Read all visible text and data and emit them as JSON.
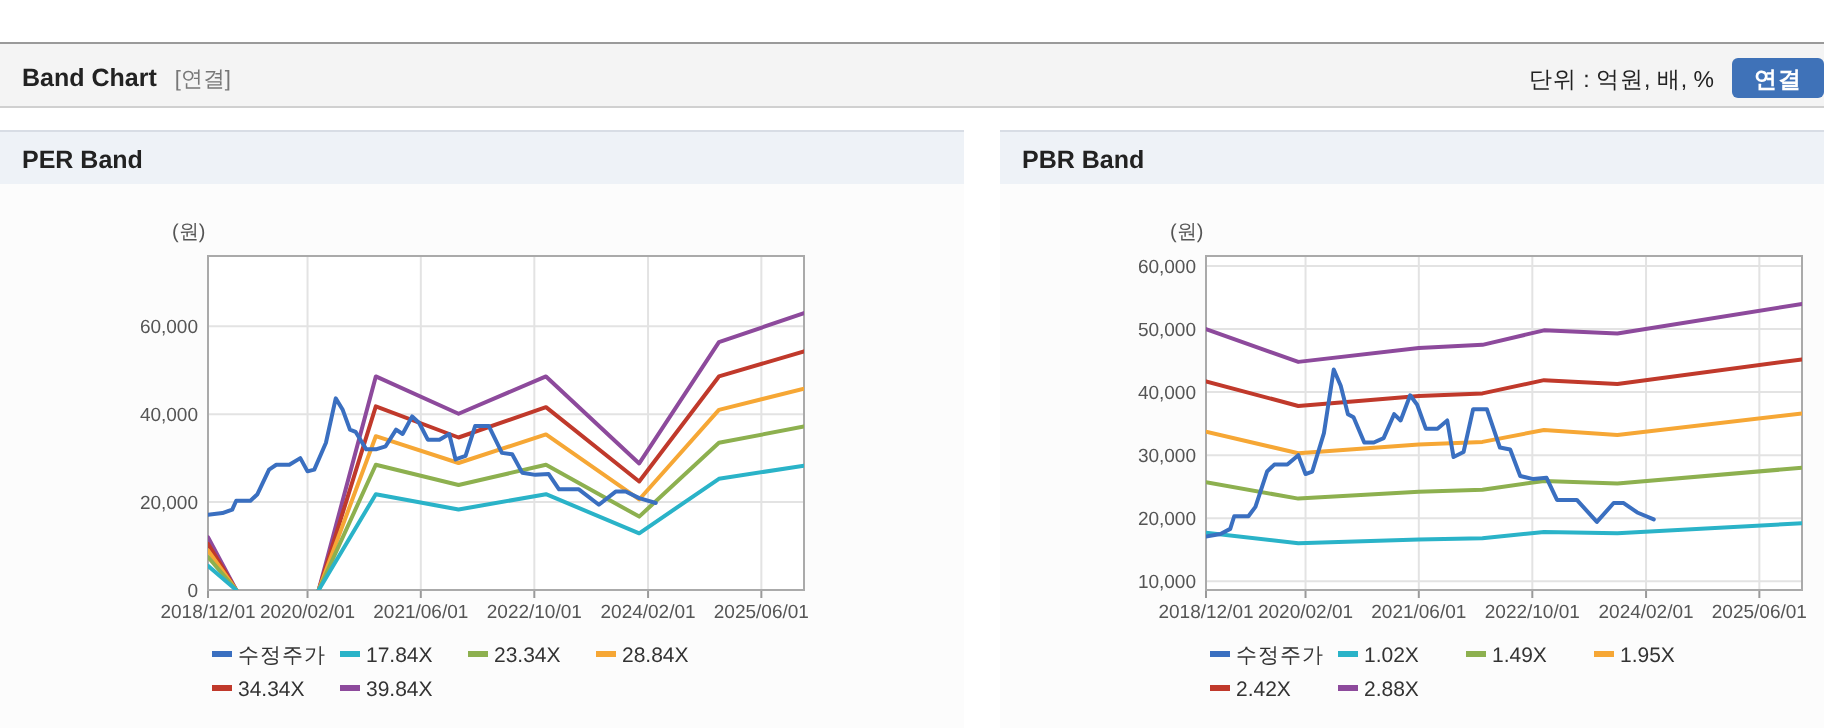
{
  "chart_data": [
    {
      "type": "other",
      "title": "Band Chart",
      "subtitle": "[연결]",
      "annotations": [
        "단위 : 억원, 배, %",
        "연결"
      ]
    },
    {
      "type": "line",
      "title": "PER Band",
      "ylabel": "(원)",
      "xlim": [
        "2018-12-01",
        "2025-12-01"
      ],
      "ylim": [
        0,
        76000
      ],
      "xticks": [
        {
          "value": "2018-12-01",
          "label": "2018/12/01"
        },
        {
          "value": "2020-02-01",
          "label": "2020/02/01"
        },
        {
          "value": "2021-06-01",
          "label": "2021/06/01"
        },
        {
          "value": "2022-10-01",
          "label": "2022/10/01"
        },
        {
          "value": "2024-02-01",
          "label": "2024/02/01"
        },
        {
          "value": "2025-06-01",
          "label": "2025/06/01"
        }
      ],
      "yticks": [
        {
          "value": 0,
          "label": "0"
        },
        {
          "value": 20000,
          "label": "20,000"
        },
        {
          "value": 40000,
          "label": "40,000"
        },
        {
          "value": 60000,
          "label": "60,000"
        }
      ],
      "grid": true,
      "legend": "bottom",
      "line_style": "solid",
      "series": [
        {
          "name": "수정주가",
          "color": "#3a6fc0",
          "x": [
            "2018-12-01",
            "2019-02-01",
            "2019-03-15",
            "2019-04-01",
            "2019-06-01",
            "2019-07-01",
            "2019-08-20",
            "2019-09-20",
            "2019-11-15",
            "2020-01-01",
            "2020-02-01",
            "2020-03-01",
            "2020-04-20",
            "2020-06-01",
            "2020-07-01",
            "2020-08-01",
            "2020-08-25",
            "2020-10-10",
            "2020-11-20",
            "2021-01-01",
            "2021-02-15",
            "2021-03-15",
            "2021-04-25",
            "2021-05-25",
            "2021-07-01",
            "2021-08-20",
            "2021-10-01",
            "2021-10-28",
            "2021-12-10",
            "2022-01-20",
            "2022-03-20",
            "2022-05-15",
            "2022-06-28",
            "2022-08-10",
            "2022-10-05",
            "2022-12-01",
            "2023-01-15",
            "2023-04-10",
            "2023-07-05",
            "2023-09-15",
            "2023-10-28",
            "2023-12-25",
            "2024-03-05"
          ],
          "values": [
            17100,
            17500,
            18300,
            20300,
            20300,
            21800,
            27400,
            28500,
            28500,
            30000,
            27000,
            27400,
            33500,
            43600,
            41000,
            36500,
            36000,
            32000,
            32000,
            32700,
            36500,
            35500,
            39500,
            38000,
            34200,
            34200,
            35500,
            29700,
            30500,
            37300,
            37300,
            31200,
            30900,
            26700,
            26200,
            26400,
            22900,
            22900,
            19400,
            22400,
            22400,
            20900,
            19800
          ]
        },
        {
          "name": "17.84X",
          "color": "#2ab3c8",
          "x": [
            "2018-12-01",
            "2019-04-01",
            "2019-10-01",
            "2020-03-20",
            "2020-11-20",
            "2021-11-10",
            "2022-11-20",
            "2023-12-25",
            "2024-12-01",
            "2025-12-01"
          ],
          "values": [
            5500,
            0,
            null,
            0,
            21800,
            18300,
            21800,
            12900,
            25300,
            28300
          ]
        },
        {
          "name": "23.34X",
          "color": "#8db04f",
          "x": [
            "2018-12-01",
            "2019-04-01",
            "2019-10-01",
            "2020-03-20",
            "2020-11-20",
            "2021-11-10",
            "2022-11-20",
            "2023-12-25",
            "2024-12-01",
            "2025-12-01"
          ],
          "values": [
            7500,
            0,
            null,
            0,
            28500,
            23900,
            28500,
            16700,
            33500,
            37200
          ]
        },
        {
          "name": "28.84X",
          "color": "#f6a735",
          "x": [
            "2018-12-01",
            "2019-04-01",
            "2019-10-01",
            "2020-03-20",
            "2020-11-20",
            "2021-11-10",
            "2022-11-20",
            "2023-12-25",
            "2024-12-01",
            "2025-12-01"
          ],
          "values": [
            9000,
            0,
            null,
            0,
            35000,
            28900,
            35400,
            20600,
            41000,
            45800
          ]
        },
        {
          "name": "34.34X",
          "color": "#c0392b",
          "x": [
            "2018-12-01",
            "2019-04-01",
            "2019-10-01",
            "2020-03-20",
            "2020-11-20",
            "2021-11-10",
            "2022-11-20",
            "2023-12-25",
            "2024-12-01",
            "2025-12-01"
          ],
          "values": [
            10500,
            0,
            null,
            0,
            41800,
            34700,
            41600,
            24700,
            48600,
            54300
          ]
        },
        {
          "name": "39.84X",
          "color": "#8d4a9c",
          "x": [
            "2018-12-01",
            "2019-04-01",
            "2019-10-01",
            "2020-03-20",
            "2020-11-20",
            "2021-11-10",
            "2022-11-20",
            "2023-12-25",
            "2024-12-01",
            "2025-12-01"
          ],
          "values": [
            12000,
            0,
            null,
            0,
            48600,
            40100,
            48600,
            28800,
            56400,
            63000
          ]
        }
      ]
    },
    {
      "type": "line",
      "title": "PBR Band",
      "ylabel": "(원)",
      "xlim": [
        "2018-12-01",
        "2025-12-01"
      ],
      "ylim": [
        8600,
        61600
      ],
      "xticks": [
        {
          "value": "2018-12-01",
          "label": "2018/12/01"
        },
        {
          "value": "2020-02-01",
          "label": "2020/02/01"
        },
        {
          "value": "2021-06-01",
          "label": "2021/06/01"
        },
        {
          "value": "2022-10-01",
          "label": "2022/10/01"
        },
        {
          "value": "2024-02-01",
          "label": "2024/02/01"
        },
        {
          "value": "2025-06-01",
          "label": "2025/06/01"
        }
      ],
      "yticks": [
        {
          "value": 10000,
          "label": "10,000"
        },
        {
          "value": 20000,
          "label": "20,000"
        },
        {
          "value": 30000,
          "label": "30,000"
        },
        {
          "value": 40000,
          "label": "40,000"
        },
        {
          "value": 50000,
          "label": "50,000"
        },
        {
          "value": 60000,
          "label": "60,000"
        }
      ],
      "grid": true,
      "legend": "bottom",
      "line_style": "solid",
      "series": [
        {
          "name": "수정주가",
          "color": "#3a6fc0",
          "x": [
            "2018-12-01",
            "2019-02-01",
            "2019-03-15",
            "2019-04-01",
            "2019-06-01",
            "2019-07-01",
            "2019-08-20",
            "2019-09-20",
            "2019-11-15",
            "2020-01-01",
            "2020-02-01",
            "2020-03-01",
            "2020-04-20",
            "2020-06-01",
            "2020-07-01",
            "2020-08-01",
            "2020-08-25",
            "2020-10-10",
            "2020-11-20",
            "2021-01-01",
            "2021-02-15",
            "2021-03-15",
            "2021-04-25",
            "2021-05-25",
            "2021-07-01",
            "2021-08-20",
            "2021-10-01",
            "2021-10-28",
            "2021-12-10",
            "2022-01-20",
            "2022-03-20",
            "2022-05-15",
            "2022-06-28",
            "2022-08-10",
            "2022-10-05",
            "2022-12-01",
            "2023-01-15",
            "2023-04-10",
            "2023-07-05",
            "2023-09-15",
            "2023-10-28",
            "2023-12-25",
            "2024-03-05"
          ],
          "values": [
            17100,
            17500,
            18300,
            20300,
            20300,
            21800,
            27400,
            28500,
            28500,
            30000,
            27000,
            27400,
            33500,
            43600,
            41000,
            36500,
            36000,
            32000,
            32000,
            32700,
            36500,
            35500,
            39500,
            38000,
            34200,
            34200,
            35500,
            29700,
            30500,
            37300,
            37300,
            31200,
            30900,
            26700,
            26200,
            26400,
            22900,
            22900,
            19400,
            22400,
            22400,
            20900,
            19800
          ]
        },
        {
          "name": "1.02X",
          "color": "#2ab3c8",
          "x": [
            "2018-12-01",
            "2020-01-01",
            "2021-06-01",
            "2022-03-01",
            "2022-11-20",
            "2023-10-01",
            "2025-12-01"
          ],
          "values": [
            17700,
            16000,
            16600,
            16800,
            17800,
            17600,
            19200
          ]
        },
        {
          "name": "1.49X",
          "color": "#8db04f",
          "x": [
            "2018-12-01",
            "2020-01-01",
            "2021-06-01",
            "2022-03-01",
            "2022-11-20",
            "2023-10-01",
            "2025-12-01"
          ],
          "values": [
            25700,
            23100,
            24200,
            24500,
            25900,
            25500,
            28000
          ]
        },
        {
          "name": "1.95X",
          "color": "#f6a735",
          "x": [
            "2018-12-01",
            "2020-01-01",
            "2021-06-01",
            "2022-03-01",
            "2022-11-20",
            "2023-10-01",
            "2025-12-01"
          ],
          "values": [
            33700,
            30300,
            31700,
            32100,
            34000,
            33200,
            36600
          ]
        },
        {
          "name": "2.42X",
          "color": "#c0392b",
          "x": [
            "2018-12-01",
            "2020-01-01",
            "2021-06-01",
            "2022-03-01",
            "2022-11-20",
            "2023-10-01",
            "2025-12-01"
          ],
          "values": [
            41700,
            37800,
            39400,
            39800,
            41900,
            41300,
            45200
          ]
        },
        {
          "name": "2.88X",
          "color": "#8d4a9c",
          "x": [
            "2018-12-01",
            "2020-01-01",
            "2021-06-01",
            "2022-03-01",
            "2022-11-20",
            "2023-10-01",
            "2025-12-01"
          ],
          "values": [
            50000,
            44800,
            47000,
            47500,
            49800,
            49300,
            54000
          ]
        }
      ]
    }
  ]
}
